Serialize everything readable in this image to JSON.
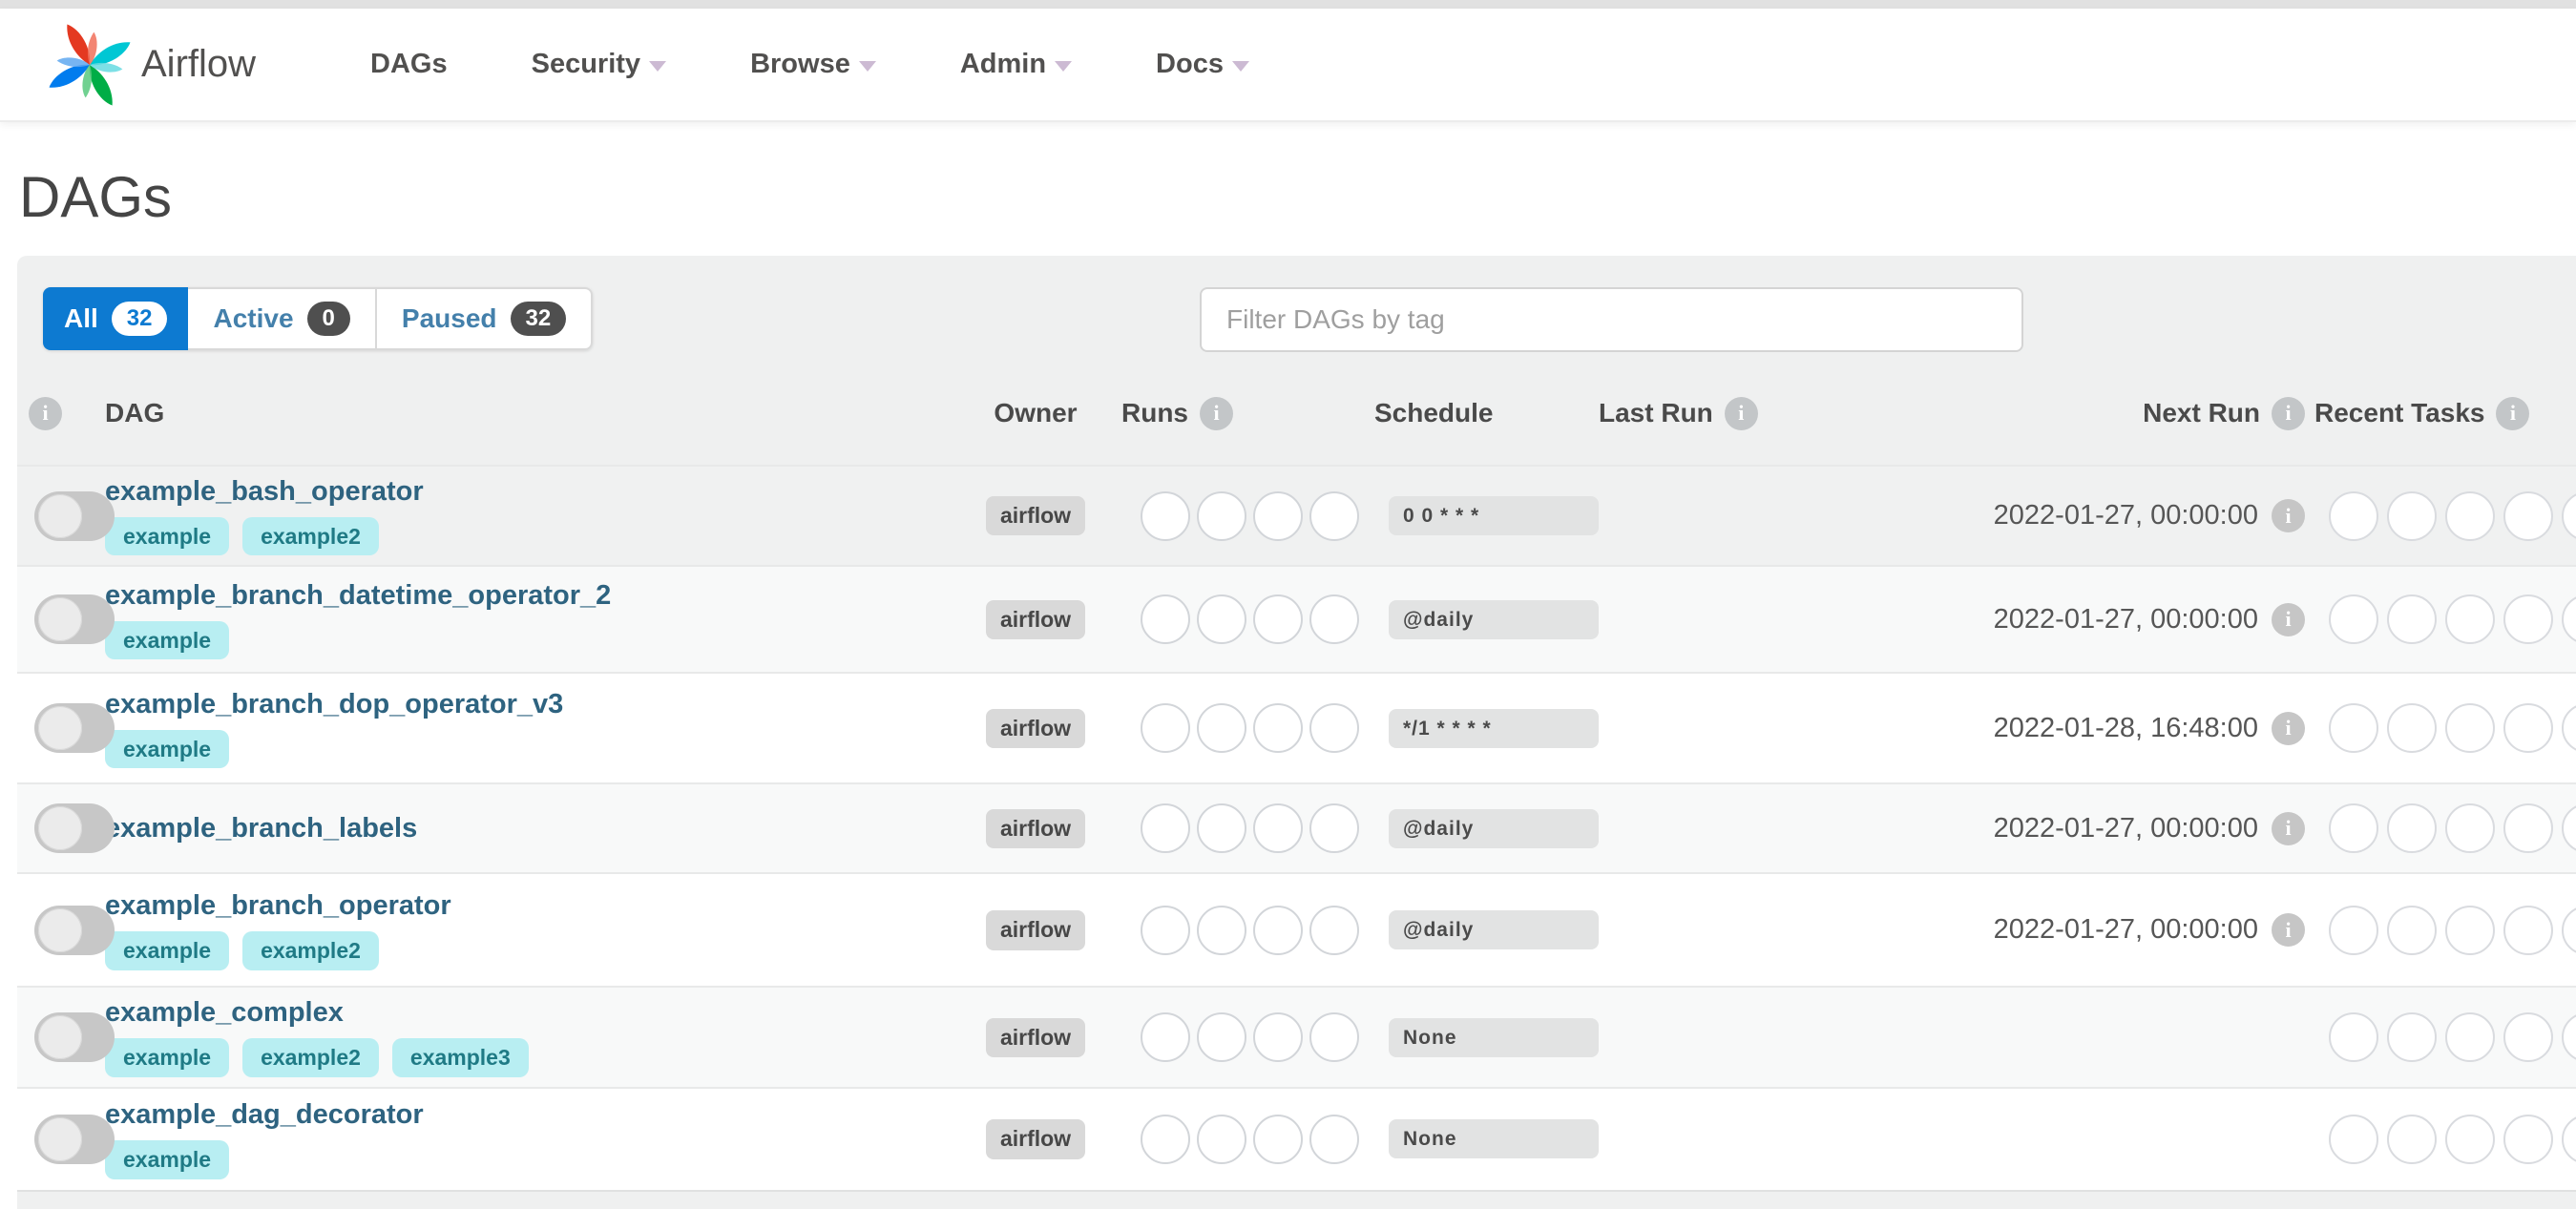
{
  "nav": {
    "brand": "Airflow",
    "items": [
      {
        "label": "DAGs",
        "caret": false
      },
      {
        "label": "Security",
        "caret": true
      },
      {
        "label": "Browse",
        "caret": true
      },
      {
        "label": "Admin",
        "caret": true
      },
      {
        "label": "Docs",
        "caret": true
      }
    ]
  },
  "page": {
    "title": "DAGs"
  },
  "tabs": [
    {
      "label": "All",
      "count": "32",
      "active": true
    },
    {
      "label": "Active",
      "count": "0",
      "active": false
    },
    {
      "label": "Paused",
      "count": "32",
      "active": false
    }
  ],
  "filter": {
    "placeholder": "Filter DAGs by tag"
  },
  "table": {
    "lead_info_icon": "info-icon",
    "columns": [
      {
        "label": "DAG",
        "info": false,
        "align": "left"
      },
      {
        "label": "Owner",
        "info": false,
        "align": "center"
      },
      {
        "label": "Runs",
        "info": true,
        "align": "left"
      },
      {
        "label": "Schedule",
        "info": false,
        "align": "left"
      },
      {
        "label": "Last Run",
        "info": true,
        "align": "left"
      },
      {
        "label": "Next Run",
        "info": true,
        "align": "right"
      },
      {
        "label": "Recent Tasks",
        "info": true,
        "align": "left"
      }
    ]
  },
  "rows": [
    {
      "name": "example_bash_operator",
      "tags": [
        "example",
        "example2"
      ],
      "owner": "airflow",
      "paused": true,
      "run_circles": 4,
      "schedule": "0 0 * * *",
      "last_run": "",
      "next_run": "2022-01-27, 00:00:00",
      "task_circles": 5
    },
    {
      "name": "example_branch_datetime_operator_2",
      "tags": [
        "example"
      ],
      "owner": "airflow",
      "paused": true,
      "run_circles": 4,
      "schedule": "@daily",
      "last_run": "",
      "next_run": "2022-01-27, 00:00:00",
      "task_circles": 5
    },
    {
      "name": "example_branch_dop_operator_v3",
      "tags": [
        "example"
      ],
      "owner": "airflow",
      "paused": true,
      "run_circles": 4,
      "schedule": "*/1 * * * *",
      "last_run": "",
      "next_run": "2022-01-28, 16:48:00",
      "task_circles": 5
    },
    {
      "name": "example_branch_labels",
      "tags": [],
      "owner": "airflow",
      "paused": true,
      "run_circles": 4,
      "schedule": "@daily",
      "last_run": "",
      "next_run": "2022-01-27, 00:00:00",
      "task_circles": 5
    },
    {
      "name": "example_branch_operator",
      "tags": [
        "example",
        "example2"
      ],
      "owner": "airflow",
      "paused": true,
      "run_circles": 4,
      "schedule": "@daily",
      "last_run": "",
      "next_run": "2022-01-27, 00:00:00",
      "task_circles": 5
    },
    {
      "name": "example_complex",
      "tags": [
        "example",
        "example2",
        "example3"
      ],
      "owner": "airflow",
      "paused": true,
      "run_circles": 4,
      "schedule": "None",
      "last_run": "",
      "next_run": "",
      "task_circles": 5
    },
    {
      "name": "example_dag_decorator",
      "tags": [
        "example"
      ],
      "owner": "airflow",
      "paused": true,
      "run_circles": 4,
      "schedule": "None",
      "last_run": "",
      "next_run": "",
      "task_circles": 5
    }
  ],
  "colors": {
    "accent_blue": "#0d7ad1",
    "dag_link": "#2e6380",
    "tag_bg": "#b8eef2",
    "tag_text": "#1f7a85",
    "owner_badge_bg": "#d9d9d9",
    "schedule_badge_bg": "#e2e3e3",
    "count_badge_bg": "#4f4f4f",
    "panel_bg": "#eff0f0",
    "logo_red": "#e43921",
    "logo_cyan": "#00c7d4",
    "logo_green": "#00ad46",
    "logo_blue": "#017cee"
  }
}
